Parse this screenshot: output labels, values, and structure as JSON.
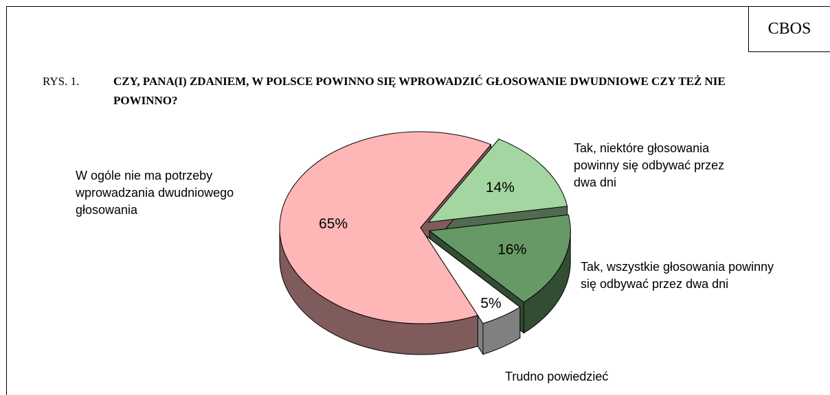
{
  "source": "CBOS",
  "chart_data": {
    "type": "pie",
    "figure_label": "RYS. 1.",
    "title": "CZY, PANA(I) ZDANIEM, W POLSCE POWINNO SIĘ WPROWADZIĆ GŁOSOWANIE DWUDNIOWE CZY TEŻ NIE POWINNO?",
    "categories": [
      "Tak, niektóre głosowania powinny się odbywać przez dwa dni",
      "Tak, wszystkie głosowania powinny się odbywać przez dwa dni",
      "Trudno powiedzieć",
      "W ogóle nie ma potrzeby wprowadzania dwudniowego głosowania"
    ],
    "values": [
      14,
      16,
      5,
      65
    ],
    "value_labels": [
      "14%",
      "16%",
      "5%",
      "65%"
    ],
    "colors": [
      "#a3d6a0",
      "#669966",
      "#ffffff",
      "#ffb6b6"
    ]
  }
}
